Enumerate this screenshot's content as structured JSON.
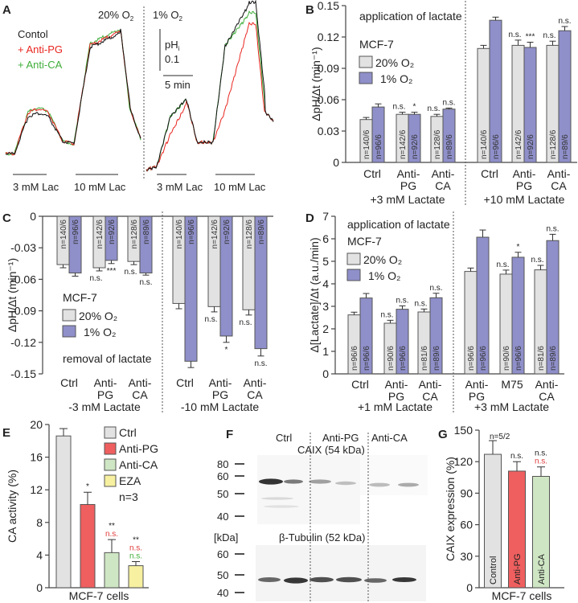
{
  "colors": {
    "o2_20": "#e2e2e2",
    "o2_1": "#8f8fca",
    "ctrl": "#e2e2e2",
    "anti_pg": "#ef5f5f",
    "anti_ca": "#cfe6c4",
    "eza": "#f6f0a0",
    "trace_control": "#111111",
    "trace_anti_pg": "#e8261f",
    "trace_anti_ca": "#3fae3a",
    "sig_red": "#e03a3a",
    "sig_green": "#3fae3a"
  },
  "panels": {
    "A": {
      "label": "A",
      "cond_20": "20% O",
      "cond_1": "1% O",
      "sub2": "2",
      "legend": [
        "Contol",
        "+ Anti-PG",
        "+ Anti-CA"
      ],
      "scale_ph": "pH",
      "scale_ph_sub": "i",
      "scale_ph_val": "0.1",
      "scale_time": "5 min",
      "bars": [
        "3 mM Lac",
        "10 mM Lac",
        "3 mM Lac",
        "10 mM Lac"
      ]
    },
    "F": {
      "label": "F",
      "lanes": [
        "Ctrl",
        "Anti-PG",
        "Anti-CA"
      ],
      "caix": "CAIX (54 kDa)",
      "tubulin": "β-Tubulin (52 kDa)",
      "markers_top": [
        "80",
        "60",
        "50",
        "40"
      ],
      "kda": "[kDa]",
      "markers_bottom": [
        "60",
        "50",
        "40"
      ]
    }
  },
  "chart_data": [
    {
      "id": "B",
      "label": "B",
      "type": "bar",
      "title": "application of lactate",
      "cell_line": "MCF-7",
      "ylabel": "ΔpH/Δt (min⁻¹)",
      "ylim": [
        0,
        0.15
      ],
      "yticks": [
        "0",
        "0.03",
        "0.06",
        "0.09",
        "0.12",
        "0.15"
      ],
      "legend": [
        "20% O₂",
        "1% O₂"
      ],
      "groups": [
        {
          "name": "+3 mM Lactate",
          "categories": [
            [
              "Ctrl",
              ""
            ],
            [
              "Anti-",
              "PG"
            ],
            [
              "Anti-",
              "CA"
            ]
          ]
        },
        {
          "name": "+10 mM Lactate",
          "categories": [
            [
              "Ctrl",
              ""
            ],
            [
              "Anti-",
              "PG"
            ],
            [
              "Anti-",
              "CA"
            ]
          ]
        }
      ],
      "series": [
        {
          "name": "20% O₂",
          "values": [
            0.041,
            0.046,
            0.044,
            0.109,
            0.112,
            0.112
          ],
          "errors": [
            0.002,
            0.002,
            0.002,
            0.003,
            0.005,
            0.004
          ],
          "n": [
            "n=140/6",
            "n=142/6",
            "n=128/6",
            "n=140/6",
            "n=142/6",
            "n=128/6"
          ],
          "sig": [
            "",
            "n.s.",
            "n.s.",
            "",
            "n.s.",
            "n.s."
          ]
        },
        {
          "name": "1% O₂",
          "values": [
            0.053,
            0.046,
            0.051,
            0.136,
            0.11,
            0.126
          ],
          "errors": [
            0.003,
            0.002,
            0.001,
            0.003,
            0.005,
            0.004
          ],
          "n": [
            "n=96/6",
            "n=92/6",
            "n=89/6",
            "n=96/6",
            "n=92/6",
            "n=89/6"
          ],
          "sig": [
            "",
            "*",
            "n.s.",
            "",
            "***",
            "n.s."
          ]
        }
      ]
    },
    {
      "id": "C",
      "label": "C",
      "type": "bar",
      "title": "removal of lactate",
      "cell_line": "MCF-7",
      "ylabel": "ΔpH/Δt (min⁻¹)",
      "ylim": [
        -0.15,
        0
      ],
      "yticks": [
        "-0.15",
        "-0.12",
        "-0.09",
        "-0.06",
        "-0.03",
        "0"
      ],
      "legend": [
        "20% O₂",
        "1% O₂"
      ],
      "groups": [
        {
          "name": "-3 mM Lactate",
          "categories": [
            [
              "Ctrl",
              ""
            ],
            [
              "Anti-",
              "PG"
            ],
            [
              "Anti-",
              "CA"
            ]
          ]
        },
        {
          "name": "-10 mM Lactate",
          "categories": [
            [
              "Ctrl",
              ""
            ],
            [
              "Anti-",
              "PG"
            ],
            [
              "Anti-",
              "CA"
            ]
          ]
        }
      ],
      "series": [
        {
          "name": "20% O₂",
          "values": [
            -0.046,
            -0.049,
            -0.043,
            -0.083,
            -0.086,
            -0.089
          ],
          "errors": [
            0.003,
            0.003,
            0.003,
            0.005,
            0.005,
            0.005
          ],
          "n": [
            "n=140/6",
            "n=142/6",
            "n=128/6",
            "n=140/6",
            "n=142/6",
            "n=128/6"
          ],
          "sig": [
            "",
            "n.s.",
            "n.s.",
            "",
            "n.s.",
            "n.s."
          ]
        },
        {
          "name": "1% O₂",
          "values": [
            -0.054,
            -0.042,
            -0.054,
            -0.138,
            -0.114,
            -0.126
          ],
          "errors": [
            0.003,
            0.003,
            0.002,
            0.006,
            0.006,
            0.007
          ],
          "n": [
            "n=96/6",
            "n=92/6",
            "n=89/6",
            "n=96/6",
            "n=92/6",
            "n=89/6"
          ],
          "sig": [
            "",
            "***",
            "n.s.",
            "",
            "*",
            "n.s."
          ]
        }
      ]
    },
    {
      "id": "D",
      "label": "D",
      "type": "bar",
      "title": "application of lactate",
      "cell_line": "MCF-7",
      "ylabel": "Δ[Lactate]/Δt (a.u./min)",
      "ylim": [
        0,
        7
      ],
      "yticks": [
        "0",
        "1",
        "2",
        "3",
        "4",
        "5",
        "6",
        "7"
      ],
      "legend": [
        "20% O₂",
        "1% O₂"
      ],
      "groups": [
        {
          "name": "+1 mM Lactate",
          "categories": [
            [
              "Ctrl",
              ""
            ],
            [
              "Anti-",
              "PG"
            ],
            [
              "Anti-",
              "CA"
            ]
          ]
        },
        {
          "name": "+3 mM Lactate",
          "categories": [
            [
              "Anti-",
              "PG"
            ],
            [
              "M75",
              ""
            ],
            [
              "Anti-",
              "CA"
            ]
          ]
        }
      ],
      "series": [
        {
          "name": "20% O₂",
          "values": [
            2.62,
            2.25,
            2.75,
            4.55,
            4.43,
            4.62
          ],
          "errors": [
            0.12,
            0.13,
            0.13,
            0.15,
            0.18,
            0.2
          ],
          "n": [
            "n=96/6",
            "n=90/6",
            "n=81/6",
            "n=96/6",
            "n=90/6",
            "n=81/6"
          ],
          "sig": [
            "",
            "n.s.",
            "n.s.",
            "",
            "n.s.",
            "n.s."
          ]
        },
        {
          "name": "1% O₂",
          "values": [
            3.37,
            2.87,
            3.38,
            6.07,
            5.18,
            5.92
          ],
          "errors": [
            0.2,
            0.15,
            0.2,
            0.32,
            0.22,
            0.28
          ],
          "n": [
            "n=96/6",
            "n=96/6",
            "n=89/6",
            "n=96/6",
            "n=96/6",
            "n=89/6"
          ],
          "sig": [
            "",
            "n.s.",
            "n.s.",
            "",
            "*",
            "n.s."
          ]
        }
      ]
    },
    {
      "id": "E",
      "label": "E",
      "type": "bar",
      "xlabel": "MCF-7 cells",
      "ylabel": "CA activity (%)",
      "ylim": [
        0,
        20
      ],
      "yticks": [
        "0",
        "4",
        "8",
        "12",
        "16",
        "20"
      ],
      "legend": [
        "Ctrl",
        "Anti-PG",
        "Anti-CA",
        "EZA"
      ],
      "n_note": "n=3",
      "categories": [
        "Ctrl",
        "Anti-PG",
        "Anti-CA",
        "EZA"
      ],
      "values": [
        18.6,
        10.2,
        4.3,
        2.7
      ],
      "errors": [
        0.9,
        1.5,
        1.6,
        0.5
      ],
      "sig": [
        [],
        [
          {
            "t": "*",
            "c": "black"
          }
        ],
        [
          {
            "t": "**",
            "c": "black"
          },
          {
            "t": "n.s.",
            "c": "red"
          }
        ],
        [
          {
            "t": "**",
            "c": "black"
          },
          {
            "t": "n.s.",
            "c": "red"
          },
          {
            "t": "n.s.",
            "c": "green"
          }
        ]
      ]
    },
    {
      "id": "G",
      "label": "G",
      "type": "bar",
      "xlabel": "MCF-7 cells",
      "ylabel": "CAIX expression (%)",
      "ylim": [
        0,
        150
      ],
      "yticks": [
        "0",
        "30",
        "60",
        "90",
        "120",
        "150"
      ],
      "categories": [
        "Control",
        "Anti-PG",
        "Anti-CA"
      ],
      "values": [
        127,
        111,
        106
      ],
      "errors": [
        13,
        9,
        9
      ],
      "n_note": "n=5/2",
      "sig": [
        [],
        [
          {
            "t": "n.s.",
            "c": "black"
          }
        ],
        [
          {
            "t": "n.s.",
            "c": "black"
          },
          {
            "t": "n.s.",
            "c": "red"
          }
        ]
      ]
    }
  ]
}
